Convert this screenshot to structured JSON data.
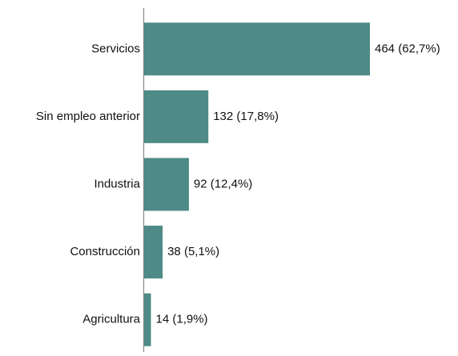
{
  "chart_data": {
    "type": "bar",
    "orientation": "horizontal",
    "categories": [
      "Servicios",
      "Sin empleo anterior",
      "Industria",
      "Construcción",
      "Agricultura"
    ],
    "values": [
      464,
      132,
      92,
      38,
      14
    ],
    "value_labels": [
      "464 (62,7%)",
      "132 (17,8%)",
      "92 (12,4%)",
      "38 (5,1%)",
      "14 (1,9%)"
    ],
    "color": "#4e8a86"
  }
}
